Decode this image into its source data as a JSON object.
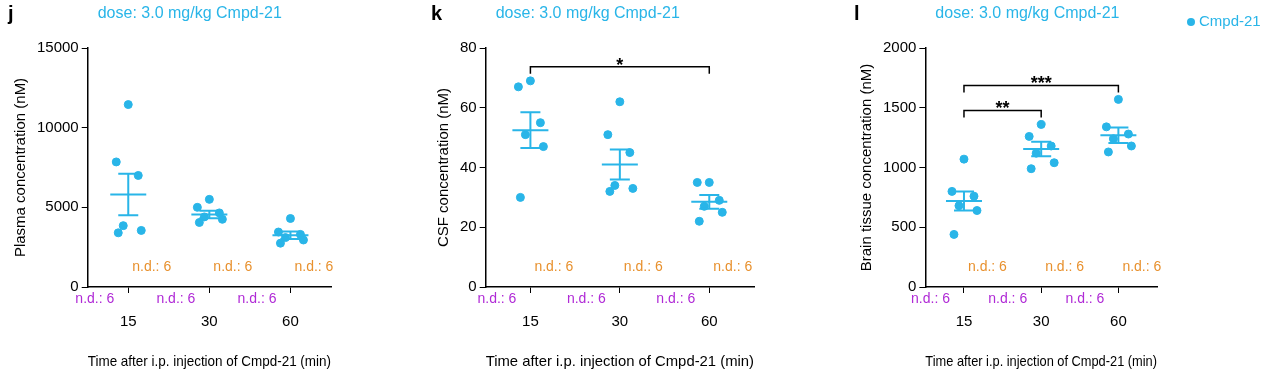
{
  "chart_data": [
    {
      "type": "scatter",
      "panel": "j",
      "title": "dose: 3.0 mg/kg Cmpd-21",
      "x_label": "Time after i.p. injection of Cmpd-21 (min)",
      "y_label": "Plasma concentration (nM)",
      "categories": [
        "15",
        "30",
        "60"
      ],
      "ylim": [
        0,
        15000
      ],
      "yticks": [
        0,
        5000,
        10000,
        15000
      ],
      "grid": false,
      "series": [
        {
          "name": "Cmpd-21",
          "color": "#29b5e8",
          "marker": "circle",
          "values": [
            [
              11450,
              7850,
              7000,
              3850,
              3550,
              3400
            ],
            [
              5500,
              5000,
              4650,
              4400,
              4250,
              4050
            ],
            [
              4300,
              3450,
              3300,
              3100,
              2950,
              2750
            ]
          ],
          "mean": [
            5800,
            4550,
            3250
          ],
          "sem": [
            1300,
            230,
            230
          ]
        }
      ],
      "nd_labels": [
        {
          "text": "n.d.: 6",
          "color": "#e8912e",
          "categories": [
            "15",
            "30",
            "60"
          ]
        },
        {
          "text": "n.d.: 6",
          "color": "#b02ad6",
          "categories": [
            "15",
            "30",
            "60"
          ]
        }
      ],
      "significance": []
    },
    {
      "type": "scatter",
      "panel": "k",
      "title": "dose: 3.0 mg/kg Cmpd-21",
      "x_label": "Time after i.p. injection of Cmpd-21 (min)",
      "y_label": "CSF concentration (nM)",
      "categories": [
        "15",
        "30",
        "60"
      ],
      "ylim": [
        0,
        80
      ],
      "yticks": [
        0,
        20,
        40,
        60,
        80
      ],
      "grid": false,
      "series": [
        {
          "name": "Cmpd-21",
          "color": "#29b5e8",
          "marker": "circle",
          "values": [
            [
              69,
              67,
              55,
              51,
              47,
              30
            ],
            [
              62,
              51,
              45,
              34,
              33,
              32
            ],
            [
              35,
              35,
              29,
              27,
              25,
              22
            ]
          ],
          "mean": [
            52.5,
            41,
            28.5
          ],
          "sem": [
            6,
            5,
            2.3
          ]
        }
      ],
      "nd_labels": [
        {
          "text": "n.d.: 6",
          "color": "#e8912e",
          "categories": [
            "15",
            "30",
            "60"
          ]
        },
        {
          "text": "n.d.: 6",
          "color": "#b02ad6",
          "categories": [
            "15",
            "30",
            "60"
          ]
        }
      ],
      "significance": [
        {
          "from": "15",
          "to": "60",
          "label": "*"
        }
      ]
    },
    {
      "type": "scatter",
      "panel": "l",
      "title": "dose: 3.0 mg/kg Cmpd-21",
      "x_label": "Time after i.p. injection of Cmpd-21 (min)",
      "y_label": "Brain tissue concentration (nM)",
      "categories": [
        "15",
        "30",
        "60"
      ],
      "ylim": [
        0,
        2000
      ],
      "yticks": [
        0,
        500,
        1000,
        1500,
        2000
      ],
      "grid": false,
      "legend": "upper right",
      "series": [
        {
          "name": "Cmpd-21",
          "color": "#29b5e8",
          "marker": "circle",
          "values": [
            [
              1070,
              800,
              760,
              680,
              640,
              440
            ],
            [
              1360,
              1260,
              1180,
              1120,
              1040,
              990
            ],
            [
              1570,
              1340,
              1280,
              1240,
              1180,
              1130
            ]
          ],
          "mean": [
            720,
            1155,
            1270
          ],
          "sem": [
            80,
            60,
            65
          ]
        }
      ],
      "nd_labels": [
        {
          "text": "n.d.: 6",
          "color": "#e8912e",
          "categories": [
            "15",
            "30",
            "60"
          ]
        },
        {
          "text": "n.d.: 6",
          "color": "#b02ad6",
          "categories": [
            "15",
            "30",
            "60"
          ]
        }
      ],
      "significance": [
        {
          "from": "15",
          "to": "30",
          "label": "**"
        },
        {
          "from": "15",
          "to": "60",
          "label": "***"
        }
      ]
    }
  ]
}
